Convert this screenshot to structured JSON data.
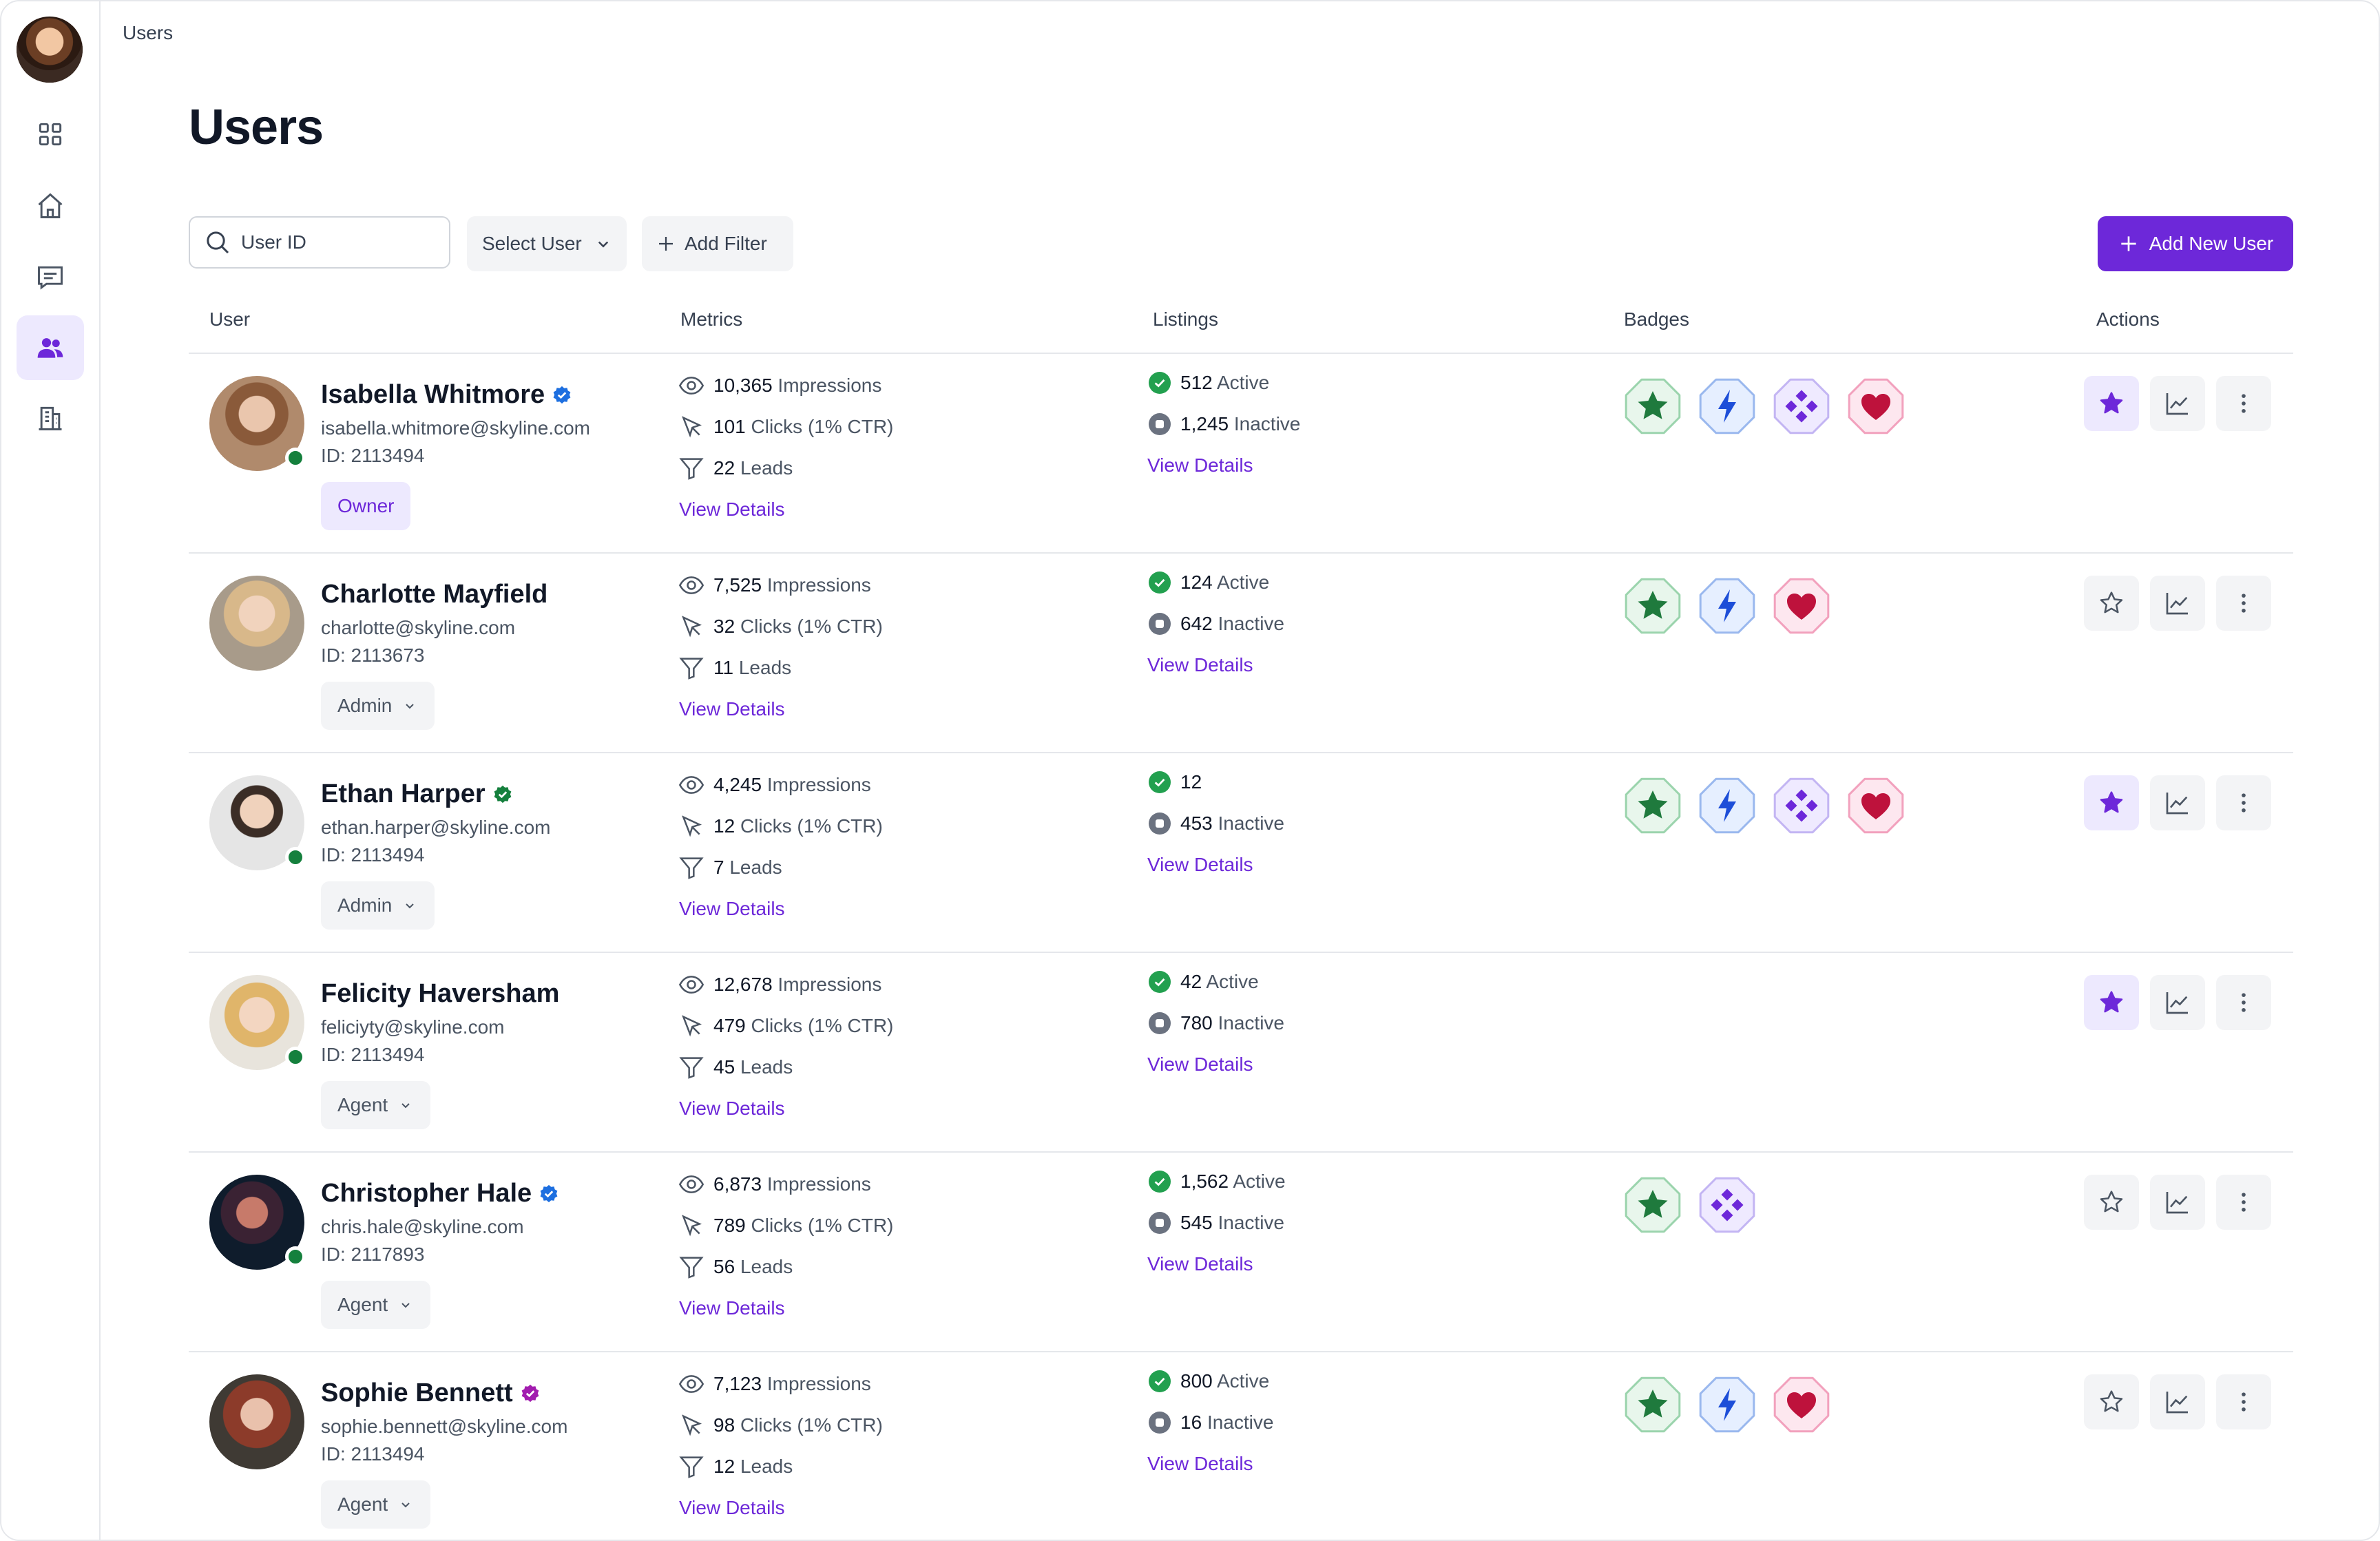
{
  "breadcrumb": "Users",
  "page_title": "Users",
  "search": {
    "placeholder": "User ID"
  },
  "toolbar": {
    "select_user": "Select User",
    "add_filter": "Add Filter",
    "add_new_user": "Add New User"
  },
  "columns": {
    "user": "User",
    "metrics": "Metrics",
    "listings": "Listings",
    "badges": "Badges",
    "actions": "Actions"
  },
  "sidebar": [
    "grid-icon",
    "home-icon",
    "messages-icon",
    "users-icon",
    "building-icon"
  ],
  "colors": {
    "accent": "#6d28d9",
    "online": "#15803d",
    "active": "#22a04f",
    "badge_green": "#1f7a3d",
    "badge_blue": "#1d4ed8",
    "badge_purple": "#6d28d9",
    "badge_pink": "#be123c"
  },
  "users": [
    {
      "name": "Isabella Whitmore",
      "verified": "blue",
      "email": "isabella.whitmore@skyline.com",
      "id_text": "ID: 2113494",
      "role": "Owner",
      "online": true,
      "impressions": "10,365",
      "impressions_label": "Impressions",
      "clicks": "101",
      "clicks_label": "Clicks (1% CTR)",
      "leads": "22",
      "leads_label": "Leads",
      "active": "512",
      "active_label": "Active",
      "inactive": "1,245",
      "inactive_label": "Inactive",
      "view_details": "View Details",
      "badges": [
        "star",
        "bolt",
        "diamond",
        "heart"
      ],
      "starred": true
    },
    {
      "name": "Charlotte Mayfield",
      "verified": "",
      "email": "charlotte@skyline.com",
      "id_text": "ID: 2113673",
      "role": "Admin",
      "online": false,
      "impressions": "7,525",
      "impressions_label": "Impressions",
      "clicks": "32",
      "clicks_label": "Clicks (1% CTR)",
      "leads": "11",
      "leads_label": "Leads",
      "active": "124",
      "active_label": "Active",
      "inactive": "642",
      "inactive_label": "Inactive",
      "view_details": "View Details",
      "badges": [
        "star",
        "bolt",
        "heart"
      ],
      "starred": false
    },
    {
      "name": "Ethan Harper",
      "verified": "green",
      "email": "ethan.harper@skyline.com",
      "id_text": "ID: 2113494",
      "role": "Admin",
      "online": true,
      "impressions": "4,245",
      "impressions_label": "Impressions",
      "clicks": "12",
      "clicks_label": "Clicks (1% CTR)",
      "leads": "7",
      "leads_label": "Leads",
      "active": "12",
      "active_label": "",
      "inactive": "453",
      "inactive_label": "Inactive",
      "view_details": "View Details",
      "badges": [
        "star",
        "bolt",
        "diamond",
        "heart"
      ],
      "starred": true
    },
    {
      "name": "Felicity Haversham",
      "verified": "",
      "email": "feliciyty@skyline.com",
      "id_text": "ID: 2113494",
      "role": "Agent",
      "online": true,
      "impressions": "12,678",
      "impressions_label": "Impressions",
      "clicks": "479",
      "clicks_label": "Clicks (1% CTR)",
      "leads": "45",
      "leads_label": "Leads",
      "active": "42",
      "active_label": "Active",
      "inactive": "780",
      "inactive_label": "Inactive",
      "view_details": "View Details",
      "badges": [],
      "starred": true
    },
    {
      "name": "Christopher Hale",
      "verified": "blue",
      "email": "chris.hale@skyline.com",
      "id_text": "ID: 2117893",
      "role": "Agent",
      "online": true,
      "impressions": "6,873",
      "impressions_label": "Impressions",
      "clicks": "789",
      "clicks_label": "Clicks (1% CTR)",
      "leads": "56",
      "leads_label": "Leads",
      "active": "1,562",
      "active_label": "Active",
      "inactive": "545",
      "inactive_label": "Inactive",
      "view_details": "View Details",
      "badges": [
        "star",
        "diamond"
      ],
      "starred": false
    },
    {
      "name": "Sophie Bennett",
      "verified": "purple",
      "email": "sophie.bennett@skyline.com",
      "id_text": "ID: 2113494",
      "role": "Agent",
      "online": false,
      "impressions": "7,123",
      "impressions_label": "Impressions",
      "clicks": "98",
      "clicks_label": "Clicks (1% CTR)",
      "leads": "12",
      "leads_label": "Leads",
      "active": "800",
      "active_label": "Active",
      "inactive": "16",
      "inactive_label": "Inactive",
      "view_details": "View Details",
      "badges": [
        "star",
        "bolt",
        "heart"
      ],
      "starred": false
    }
  ]
}
